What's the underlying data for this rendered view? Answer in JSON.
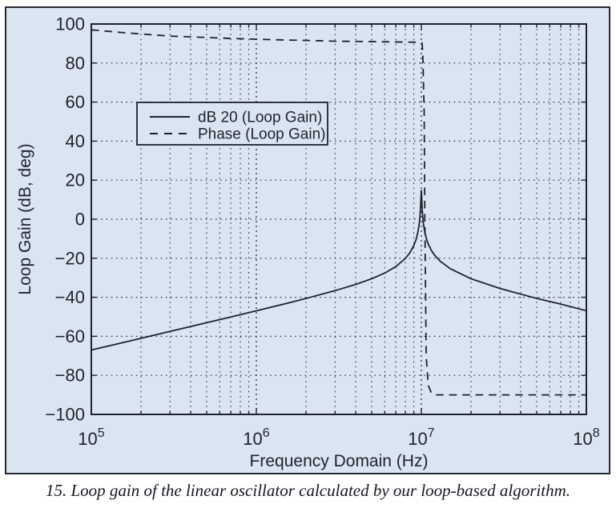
{
  "figure": {
    "caption": "15. Loop gain of the linear oscillator calculated by our loop-based algorithm.",
    "panel_bg": "#dbe5f2",
    "ink_color": "#1e222c",
    "grid_color": "#2b313d"
  },
  "chart_data": {
    "type": "line",
    "title": "",
    "xlabel": "Frequency Domain (Hz)",
    "ylabel": "Loop Gain (dB, deg)",
    "x_scale": "log",
    "xlim": [
      100000.0,
      100000000.0
    ],
    "ylim": [
      -100,
      100
    ],
    "grid": "dotted, major+minor log verticals, horizontals every 20",
    "x_ticks": [
      {
        "f": 100000.0,
        "base": "10",
        "exp": "5"
      },
      {
        "f": 1000000.0,
        "base": "10",
        "exp": "6"
      },
      {
        "f": 10000000.0,
        "base": "10",
        "exp": "7"
      },
      {
        "f": 100000000.0,
        "base": "10",
        "exp": "8"
      }
    ],
    "y_ticks": [
      {
        "v": 100,
        "label": "100"
      },
      {
        "v": 80,
        "label": "80"
      },
      {
        "v": 60,
        "label": "60"
      },
      {
        "v": 40,
        "label": "40"
      },
      {
        "v": 20,
        "label": "20"
      },
      {
        "v": 0,
        "label": "0"
      },
      {
        "v": -20,
        "label": "−20"
      },
      {
        "v": -40,
        "label": "−40"
      },
      {
        "v": -60,
        "label": "−60"
      },
      {
        "v": -80,
        "label": "−80"
      },
      {
        "v": -100,
        "label": "−100"
      }
    ],
    "legend": {
      "position": "upper-left",
      "entries": [
        {
          "label": "dB 20 (Loop Gain)",
          "style": "solid"
        },
        {
          "label": "Phase (Loop Gain)",
          "style": "dashed"
        }
      ]
    },
    "series": [
      {
        "name": "dB 20 (Loop Gain)",
        "style": "solid",
        "x": [
          100000.0,
          150000.0,
          200000.0,
          300000.0,
          500000.0,
          700000.0,
          1000000.0,
          1500000.0,
          2000000.0,
          3000000.0,
          4000000.0,
          5000000.0,
          6000000.0,
          7000000.0,
          8000000.0,
          8500000.0,
          9000000.0,
          9300000.0,
          9500000.0,
          9700000.0,
          9800000.0,
          9900000.0,
          9950000.0,
          10000000.0,
          10050000.0,
          10100000.0,
          10200000.0,
          10300000.0,
          10500000.0,
          10800000.0,
          11000000.0,
          11500000.0,
          12000000.0,
          13000000.0,
          15000000.0,
          20000000.0,
          30000000.0,
          50000000.0,
          70000000.0,
          100000000.0
        ],
        "y": [
          -67,
          -63.5,
          -61,
          -57.5,
          -53,
          -50.1,
          -46.9,
          -43.3,
          -40.6,
          -36.6,
          -33.4,
          -30.5,
          -27.6,
          -24.3,
          -20.1,
          -17.3,
          -13.5,
          -10.3,
          -7.2,
          -2.8,
          0.9,
          6.9,
          10.9,
          15,
          10.9,
          6.4,
          0.9,
          -2.4,
          -6.8,
          -10.8,
          -12.6,
          -16,
          -18.3,
          -21.5,
          -25.4,
          -30.5,
          -35.5,
          -40.6,
          -43.5,
          -46.9
        ]
      },
      {
        "name": "Phase (Loop Gain)",
        "style": "dashed",
        "x": [
          100000.0,
          150000.0,
          200000.0,
          300000.0,
          500000.0,
          700000.0,
          1000000.0,
          1500000.0,
          2000000.0,
          3000000.0,
          5000000.0,
          7000000.0,
          9000000.0,
          9800000.0,
          10100000.0,
          10200000.0,
          10400000.0,
          10500000.0,
          10700000.0,
          11000000.0,
          11500000.0,
          12000000.0,
          20000000.0,
          50000000.0,
          100000000.0
        ],
        "y": [
          97,
          95.7,
          94.9,
          93.8,
          93.1,
          92.6,
          92.2,
          91.8,
          91.6,
          91.2,
          91,
          90.8,
          90.7,
          90.5,
          90.2,
          85,
          55,
          0,
          -70,
          -85,
          -89,
          -90,
          -90,
          -90,
          -90
        ]
      }
    ]
  }
}
